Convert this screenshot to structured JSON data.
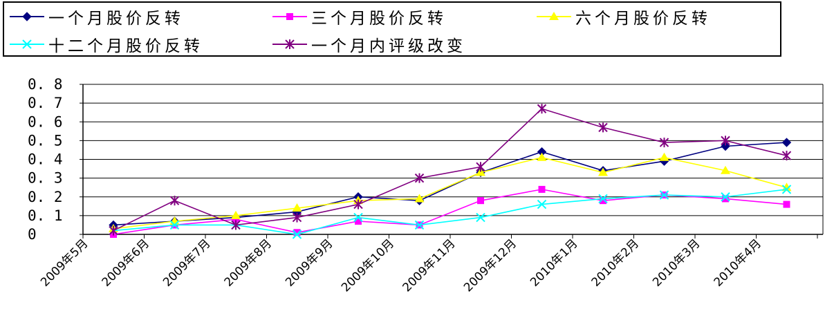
{
  "chart_data": {
    "type": "line",
    "title": "",
    "xlabel": "",
    "ylabel": "",
    "categories": [
      "2009年5月",
      "2009年6月",
      "2009年7月",
      "2009年8月",
      "2009年9月",
      "2009年10月",
      "2009年11月",
      "2009年12月",
      "2010年1月",
      "2010年2月",
      "2010年3月",
      "2010年4月"
    ],
    "ylim": [
      0,
      0.8
    ],
    "yticks": [
      0,
      0.1,
      0.2,
      0.3,
      0.4,
      0.5,
      0.6,
      0.7,
      0.8
    ],
    "ytick_labels": [
      "0",
      "0. 1",
      "0. 2",
      "0. 3",
      "0. 4",
      "0. 5",
      "0. 6",
      "0. 7",
      "0. 8"
    ],
    "grid": "horizontal",
    "legend_position": "top",
    "series": [
      {
        "name": "一个月股价反转",
        "color": "#000080",
        "marker": "diamond",
        "values": [
          0.05,
          0.07,
          0.09,
          0.12,
          0.2,
          0.18,
          0.33,
          0.44,
          0.34,
          0.39,
          0.47,
          0.49
        ]
      },
      {
        "name": "三个月股价反转",
        "color": "#ff00ff",
        "marker": "square",
        "values": [
          0.0,
          0.05,
          0.08,
          0.01,
          0.07,
          0.05,
          0.18,
          0.24,
          0.18,
          0.21,
          0.19,
          0.16
        ]
      },
      {
        "name": "六个月股价反转",
        "color": "#ffff00",
        "marker": "triangle",
        "values": [
          0.03,
          0.07,
          0.1,
          0.14,
          0.18,
          0.19,
          0.33,
          0.41,
          0.33,
          0.41,
          0.34,
          0.25
        ]
      },
      {
        "name": "十二个月股价反转",
        "color": "#00ffff",
        "marker": "x",
        "values": [
          0.02,
          0.05,
          0.05,
          0.0,
          0.09,
          0.05,
          0.09,
          0.16,
          0.19,
          0.21,
          0.2,
          0.24
        ]
      },
      {
        "name": "一个月内评级改变",
        "color": "#800080",
        "marker": "star",
        "values": [
          0.02,
          0.18,
          0.05,
          0.09,
          0.16,
          0.3,
          0.36,
          0.67,
          0.57,
          0.49,
          0.5,
          0.42
        ]
      }
    ]
  }
}
